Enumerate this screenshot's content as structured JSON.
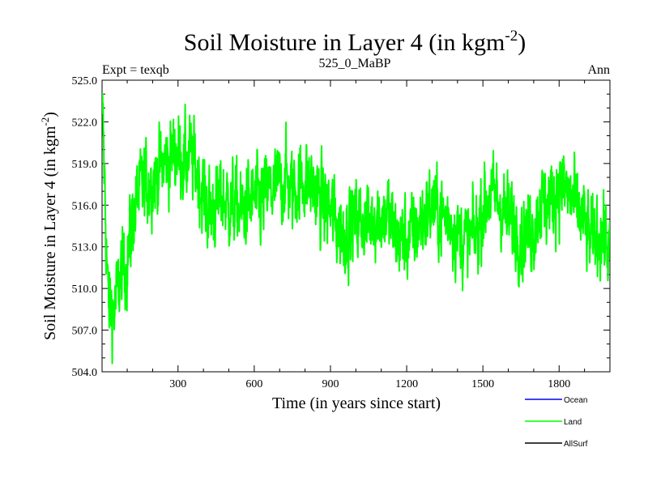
{
  "chart_data": {
    "type": "line",
    "title": "Soil Moisture in Layer 4 (in kgm",
    "title_superscript": "-2",
    "title_close": ")",
    "left_label": "Expt = texqb",
    "center_label": "525_0_MaBP",
    "right_label": "Ann",
    "xlabel": "Time (in years since start)",
    "ylabel": "Soil Moisture in Layer 4 (in kgm",
    "ylabel_superscript": "-2",
    "ylabel_close": ")",
    "xlim": [
      1,
      2000
    ],
    "ylim": [
      504.0,
      525.0
    ],
    "x_ticks": [
      300,
      600,
      900,
      1200,
      1500,
      1800
    ],
    "x_tick_labels": [
      "300",
      "600",
      "900",
      "1200",
      "1500",
      "1800"
    ],
    "y_ticks": [
      504.0,
      507.0,
      510.0,
      513.0,
      516.0,
      519.0,
      522.0,
      525.0
    ],
    "y_tick_labels": [
      "504.0",
      "507.0",
      "510.0",
      "513.0",
      "516.0",
      "519.0",
      "522.0",
      "525.0"
    ],
    "series": [
      {
        "name": "Land",
        "color": "#00ff00",
        "x": [
          1,
          25,
          50,
          75,
          100,
          125,
          150,
          175,
          200,
          225,
          250,
          275,
          300,
          325,
          350,
          375,
          400,
          425,
          450,
          475,
          500,
          525,
          550,
          575,
          600,
          625,
          650,
          675,
          700,
          725,
          750,
          775,
          800,
          825,
          850,
          875,
          900,
          925,
          950,
          975,
          1000,
          1025,
          1050,
          1075,
          1100,
          1125,
          1150,
          1175,
          1200,
          1225,
          1250,
          1275,
          1300,
          1325,
          1350,
          1375,
          1400,
          1425,
          1450,
          1475,
          1500,
          1525,
          1550,
          1575,
          1600,
          1625,
          1650,
          1675,
          1700,
          1725,
          1750,
          1775,
          1800,
          1825,
          1850,
          1875,
          1900,
          1925,
          1950,
          1975,
          2000
        ],
        "y": [
          524.0,
          509.0,
          508.5,
          511.0,
          512.0,
          515.5,
          517.0,
          517.5,
          518.0,
          518.5,
          519.0,
          519.5,
          520.0,
          519.0,
          519.5,
          518.5,
          516.5,
          515.5,
          516.0,
          516.5,
          516.0,
          516.0,
          515.5,
          516.0,
          516.5,
          516.0,
          517.0,
          517.0,
          517.5,
          518.0,
          517.0,
          517.5,
          518.0,
          517.5,
          516.5,
          516.0,
          515.5,
          514.5,
          514.0,
          514.5,
          515.0,
          515.0,
          514.5,
          515.5,
          515.0,
          515.5,
          514.0,
          513.5,
          513.5,
          514.0,
          514.5,
          515.5,
          516.0,
          515.5,
          515.0,
          515.0,
          514.0,
          513.5,
          513.5,
          514.0,
          516.0,
          516.5,
          516.5,
          516.0,
          515.0,
          514.5,
          514.0,
          514.0,
          514.5,
          516.0,
          516.0,
          516.5,
          517.5,
          517.0,
          516.5,
          515.5,
          514.5,
          513.5,
          514.0,
          514.0,
          512.5
        ]
      },
      {
        "name": "Ocean",
        "color": "#0000ff",
        "x": [],
        "y": []
      },
      {
        "name": "AllSurf",
        "color": "#000000",
        "x": [],
        "y": []
      }
    ],
    "grid": false,
    "legend_position": "bottom-right"
  }
}
